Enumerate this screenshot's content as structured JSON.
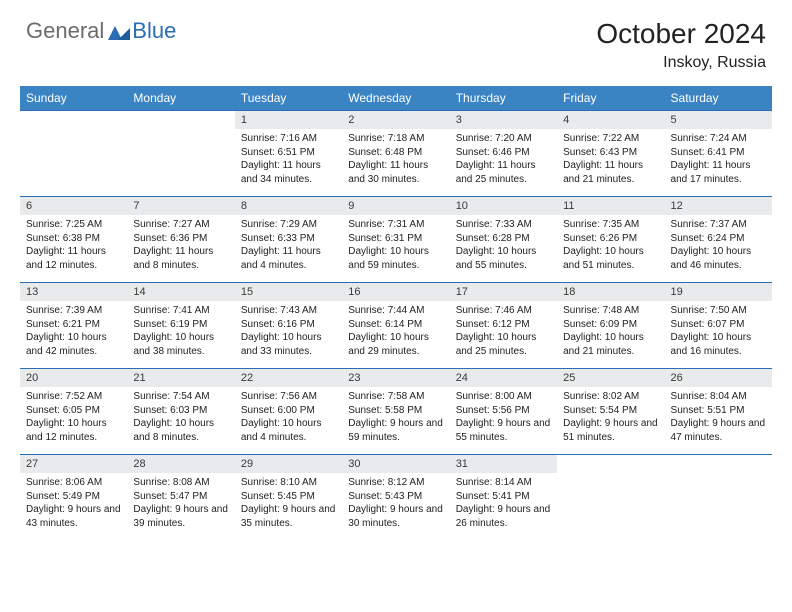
{
  "brand": {
    "general": "General",
    "blue": "Blue",
    "accent": "#2a6db5"
  },
  "title": "October 2024",
  "subtitle": "Inskoy, Russia",
  "header_bg": "#3b84c4",
  "day_header_bg": "#e9eaeb",
  "border_color": "#2a6db5",
  "days_of_week": [
    "Sunday",
    "Monday",
    "Tuesday",
    "Wednesday",
    "Thursday",
    "Friday",
    "Saturday"
  ],
  "weeks": [
    [
      null,
      null,
      {
        "n": "1",
        "sunrise": "7:16 AM",
        "sunset": "6:51 PM",
        "daylight": "11 hours and 34 minutes."
      },
      {
        "n": "2",
        "sunrise": "7:18 AM",
        "sunset": "6:48 PM",
        "daylight": "11 hours and 30 minutes."
      },
      {
        "n": "3",
        "sunrise": "7:20 AM",
        "sunset": "6:46 PM",
        "daylight": "11 hours and 25 minutes."
      },
      {
        "n": "4",
        "sunrise": "7:22 AM",
        "sunset": "6:43 PM",
        "daylight": "11 hours and 21 minutes."
      },
      {
        "n": "5",
        "sunrise": "7:24 AM",
        "sunset": "6:41 PM",
        "daylight": "11 hours and 17 minutes."
      }
    ],
    [
      {
        "n": "6",
        "sunrise": "7:25 AM",
        "sunset": "6:38 PM",
        "daylight": "11 hours and 12 minutes."
      },
      {
        "n": "7",
        "sunrise": "7:27 AM",
        "sunset": "6:36 PM",
        "daylight": "11 hours and 8 minutes."
      },
      {
        "n": "8",
        "sunrise": "7:29 AM",
        "sunset": "6:33 PM",
        "daylight": "11 hours and 4 minutes."
      },
      {
        "n": "9",
        "sunrise": "7:31 AM",
        "sunset": "6:31 PM",
        "daylight": "10 hours and 59 minutes."
      },
      {
        "n": "10",
        "sunrise": "7:33 AM",
        "sunset": "6:28 PM",
        "daylight": "10 hours and 55 minutes."
      },
      {
        "n": "11",
        "sunrise": "7:35 AM",
        "sunset": "6:26 PM",
        "daylight": "10 hours and 51 minutes."
      },
      {
        "n": "12",
        "sunrise": "7:37 AM",
        "sunset": "6:24 PM",
        "daylight": "10 hours and 46 minutes."
      }
    ],
    [
      {
        "n": "13",
        "sunrise": "7:39 AM",
        "sunset": "6:21 PM",
        "daylight": "10 hours and 42 minutes."
      },
      {
        "n": "14",
        "sunrise": "7:41 AM",
        "sunset": "6:19 PM",
        "daylight": "10 hours and 38 minutes."
      },
      {
        "n": "15",
        "sunrise": "7:43 AM",
        "sunset": "6:16 PM",
        "daylight": "10 hours and 33 minutes."
      },
      {
        "n": "16",
        "sunrise": "7:44 AM",
        "sunset": "6:14 PM",
        "daylight": "10 hours and 29 minutes."
      },
      {
        "n": "17",
        "sunrise": "7:46 AM",
        "sunset": "6:12 PM",
        "daylight": "10 hours and 25 minutes."
      },
      {
        "n": "18",
        "sunrise": "7:48 AM",
        "sunset": "6:09 PM",
        "daylight": "10 hours and 21 minutes."
      },
      {
        "n": "19",
        "sunrise": "7:50 AM",
        "sunset": "6:07 PM",
        "daylight": "10 hours and 16 minutes."
      }
    ],
    [
      {
        "n": "20",
        "sunrise": "7:52 AM",
        "sunset": "6:05 PM",
        "daylight": "10 hours and 12 minutes."
      },
      {
        "n": "21",
        "sunrise": "7:54 AM",
        "sunset": "6:03 PM",
        "daylight": "10 hours and 8 minutes."
      },
      {
        "n": "22",
        "sunrise": "7:56 AM",
        "sunset": "6:00 PM",
        "daylight": "10 hours and 4 minutes."
      },
      {
        "n": "23",
        "sunrise": "7:58 AM",
        "sunset": "5:58 PM",
        "daylight": "9 hours and 59 minutes."
      },
      {
        "n": "24",
        "sunrise": "8:00 AM",
        "sunset": "5:56 PM",
        "daylight": "9 hours and 55 minutes."
      },
      {
        "n": "25",
        "sunrise": "8:02 AM",
        "sunset": "5:54 PM",
        "daylight": "9 hours and 51 minutes."
      },
      {
        "n": "26",
        "sunrise": "8:04 AM",
        "sunset": "5:51 PM",
        "daylight": "9 hours and 47 minutes."
      }
    ],
    [
      {
        "n": "27",
        "sunrise": "8:06 AM",
        "sunset": "5:49 PM",
        "daylight": "9 hours and 43 minutes."
      },
      {
        "n": "28",
        "sunrise": "8:08 AM",
        "sunset": "5:47 PM",
        "daylight": "9 hours and 39 minutes."
      },
      {
        "n": "29",
        "sunrise": "8:10 AM",
        "sunset": "5:45 PM",
        "daylight": "9 hours and 35 minutes."
      },
      {
        "n": "30",
        "sunrise": "8:12 AM",
        "sunset": "5:43 PM",
        "daylight": "9 hours and 30 minutes."
      },
      {
        "n": "31",
        "sunrise": "8:14 AM",
        "sunset": "5:41 PM",
        "daylight": "9 hours and 26 minutes."
      },
      null,
      null
    ]
  ],
  "labels": {
    "sunrise": "Sunrise:",
    "sunset": "Sunset:",
    "daylight": "Daylight:"
  }
}
